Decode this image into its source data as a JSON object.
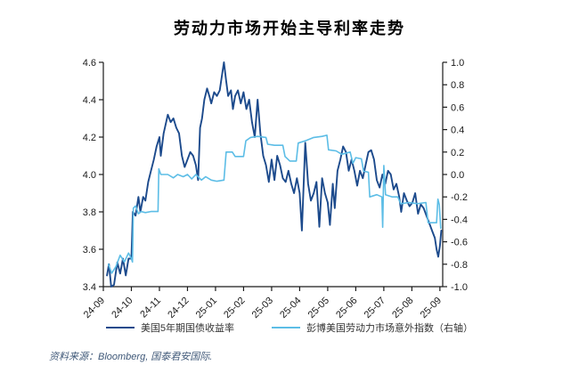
{
  "title": "劳动力市场开始主导利率走势",
  "source": "资料来源：Bloomberg, 国泰君安国际.",
  "colors": {
    "yield_line": "#1c4a8c",
    "surprise_line": "#5cbde6",
    "axis": "#1a1a1a",
    "title_text": "#000000",
    "source_text": "#3f5878"
  },
  "chart_data": {
    "type": "line",
    "title": "劳动力市场开始主导利率走势",
    "grid": false,
    "legend_position": "bottom",
    "x_tick_labels": [
      "24-09",
      "24-10",
      "24-11",
      "24-12",
      "25-01",
      "25-02",
      "25-03",
      "25-04",
      "25-05",
      "25-06",
      "25-07",
      "25-08",
      "25-09"
    ],
    "x_domain_months": [
      0,
      12.1
    ],
    "left_axis": {
      "min": 3.4,
      "max": 4.6,
      "ticks": [
        "4.6",
        "4.4",
        "4.2",
        "4.0",
        "3.8",
        "3.6",
        "3.4"
      ]
    },
    "right_axis": {
      "min": -1.0,
      "max": 1.0,
      "ticks": [
        "1.0",
        "0.8",
        "0.6",
        "0.4",
        "0.2",
        "0.0",
        "-0.2",
        "-0.4",
        "-0.6",
        "-0.8",
        "-1.0"
      ]
    },
    "series": [
      {
        "id": "treasury-yield",
        "name": "美国5年期国债收益率",
        "axis": "left",
        "color": "#1c4a8c",
        "width": 1.9,
        "points": [
          [
            0.13,
            3.46
          ],
          [
            0.2,
            3.52
          ],
          [
            0.28,
            3.4
          ],
          [
            0.38,
            3.41
          ],
          [
            0.5,
            3.53
          ],
          [
            0.6,
            3.47
          ],
          [
            0.7,
            3.55
          ],
          [
            0.8,
            3.46
          ],
          [
            0.9,
            3.55
          ],
          [
            1.0,
            3.55
          ],
          [
            1.05,
            3.8
          ],
          [
            1.15,
            3.78
          ],
          [
            1.25,
            3.88
          ],
          [
            1.32,
            3.8
          ],
          [
            1.42,
            3.88
          ],
          [
            1.5,
            3.86
          ],
          [
            1.6,
            3.96
          ],
          [
            1.7,
            4.02
          ],
          [
            1.8,
            4.08
          ],
          [
            1.9,
            4.15
          ],
          [
            2.0,
            4.2
          ],
          [
            2.05,
            4.1
          ],
          [
            2.15,
            4.22
          ],
          [
            2.3,
            4.32
          ],
          [
            2.4,
            4.28
          ],
          [
            2.5,
            4.3
          ],
          [
            2.6,
            4.25
          ],
          [
            2.7,
            4.22
          ],
          [
            2.8,
            4.1
          ],
          [
            2.9,
            4.04
          ],
          [
            3.0,
            4.08
          ],
          [
            3.1,
            4.12
          ],
          [
            3.2,
            4.1
          ],
          [
            3.3,
            4.05
          ],
          [
            3.38,
            3.97
          ],
          [
            3.45,
            4.25
          ],
          [
            3.52,
            4.3
          ],
          [
            3.6,
            4.4
          ],
          [
            3.7,
            4.46
          ],
          [
            3.78,
            4.42
          ],
          [
            3.85,
            4.38
          ],
          [
            3.95,
            4.44
          ],
          [
            4.05,
            4.42
          ],
          [
            4.15,
            4.45
          ],
          [
            4.25,
            4.55
          ],
          [
            4.3,
            4.6
          ],
          [
            4.38,
            4.5
          ],
          [
            4.45,
            4.42
          ],
          [
            4.55,
            4.45
          ],
          [
            4.62,
            4.35
          ],
          [
            4.7,
            4.42
          ],
          [
            4.8,
            4.45
          ],
          [
            4.9,
            4.38
          ],
          [
            5.0,
            4.44
          ],
          [
            5.1,
            4.35
          ],
          [
            5.2,
            4.4
          ],
          [
            5.3,
            4.28
          ],
          [
            5.4,
            4.2
          ],
          [
            5.5,
            4.4
          ],
          [
            5.6,
            4.22
          ],
          [
            5.7,
            4.1
          ],
          [
            5.8,
            4.05
          ],
          [
            5.9,
            3.96
          ],
          [
            6.0,
            4.08
          ],
          [
            6.1,
            3.97
          ],
          [
            6.2,
            4.1
          ],
          [
            6.3,
            4.05
          ],
          [
            6.4,
            3.98
          ],
          [
            6.5,
            3.96
          ],
          [
            6.6,
            4.02
          ],
          [
            6.7,
            3.95
          ],
          [
            6.8,
            3.9
          ],
          [
            6.9,
            3.98
          ],
          [
            7.0,
            3.9
          ],
          [
            7.08,
            3.7
          ],
          [
            7.2,
            4.17
          ],
          [
            7.3,
            3.95
          ],
          [
            7.4,
            3.86
          ],
          [
            7.5,
            3.9
          ],
          [
            7.6,
            3.96
          ],
          [
            7.7,
            3.72
          ],
          [
            7.8,
            3.98
          ],
          [
            7.9,
            3.9
          ],
          [
            8.0,
            3.85
          ],
          [
            8.08,
            3.73
          ],
          [
            8.18,
            3.95
          ],
          [
            8.25,
            3.82
          ],
          [
            8.35,
            4.02
          ],
          [
            8.45,
            4.08
          ],
          [
            8.55,
            4.15
          ],
          [
            8.65,
            4.12
          ],
          [
            8.75,
            4.02
          ],
          [
            8.85,
            4.08
          ],
          [
            8.95,
            4.02
          ],
          [
            9.05,
            3.94
          ],
          [
            9.15,
            4.02
          ],
          [
            9.25,
            3.98
          ],
          [
            9.35,
            4.05
          ],
          [
            9.45,
            4.12
          ],
          [
            9.55,
            4.13
          ],
          [
            9.65,
            4.08
          ],
          [
            9.75,
            3.97
          ],
          [
            9.85,
            3.93
          ],
          [
            9.95,
            4.0
          ],
          [
            10.05,
            3.95
          ],
          [
            10.15,
            4.02
          ],
          [
            10.25,
            4.0
          ],
          [
            10.35,
            3.92
          ],
          [
            10.45,
            3.95
          ],
          [
            10.55,
            3.88
          ],
          [
            10.62,
            3.8
          ],
          [
            10.72,
            3.9
          ],
          [
            10.82,
            3.86
          ],
          [
            10.92,
            3.83
          ],
          [
            11.02,
            3.85
          ],
          [
            11.12,
            3.9
          ],
          [
            11.22,
            3.79
          ],
          [
            11.32,
            3.84
          ],
          [
            11.42,
            3.82
          ],
          [
            11.52,
            3.78
          ],
          [
            11.62,
            3.74
          ],
          [
            11.72,
            3.7
          ],
          [
            11.82,
            3.66
          ],
          [
            11.88,
            3.6
          ],
          [
            11.94,
            3.56
          ],
          [
            12.0,
            3.62
          ],
          [
            12.05,
            3.7
          ]
        ]
      },
      {
        "id": "labor-surprise",
        "name": "彭博美国劳动力市场意外指数（右轴）",
        "axis": "right",
        "color": "#5cbde6",
        "width": 1.6,
        "points": [
          [
            0.18,
            -0.8
          ],
          [
            0.3,
            -0.88
          ],
          [
            0.45,
            -0.82
          ],
          [
            0.6,
            -0.72
          ],
          [
            0.75,
            -0.78
          ],
          [
            0.9,
            -0.7
          ],
          [
            1.0,
            -0.75
          ],
          [
            1.04,
            -0.78
          ],
          [
            1.07,
            -0.3
          ],
          [
            1.15,
            -0.28
          ],
          [
            1.25,
            -0.35
          ],
          [
            1.35,
            -0.33
          ],
          [
            1.5,
            -0.34
          ],
          [
            1.7,
            -0.33
          ],
          [
            1.95,
            -0.33
          ],
          [
            1.98,
            0.05
          ],
          [
            2.05,
            0.0
          ],
          [
            2.3,
            0.0
          ],
          [
            2.5,
            -0.03
          ],
          [
            2.65,
            0.0
          ],
          [
            2.85,
            -0.02
          ],
          [
            3.0,
            0.0
          ],
          [
            3.15,
            -0.04
          ],
          [
            3.3,
            0.0
          ],
          [
            3.5,
            -0.05
          ],
          [
            3.65,
            -0.02
          ],
          [
            3.85,
            -0.05
          ],
          [
            4.05,
            -0.06
          ],
          [
            4.3,
            -0.05
          ],
          [
            4.38,
            0.2
          ],
          [
            4.6,
            0.2
          ],
          [
            4.7,
            0.16
          ],
          [
            5.0,
            0.16
          ],
          [
            5.08,
            0.3
          ],
          [
            5.25,
            0.33
          ],
          [
            5.5,
            0.34
          ],
          [
            5.8,
            0.33
          ],
          [
            5.86,
            0.27
          ],
          [
            6.1,
            0.26
          ],
          [
            6.4,
            0.26
          ],
          [
            6.48,
            0.16
          ],
          [
            6.65,
            0.12
          ],
          [
            6.88,
            0.12
          ],
          [
            6.95,
            0.28
          ],
          [
            7.2,
            0.3
          ],
          [
            7.5,
            0.33
          ],
          [
            7.8,
            0.34
          ],
          [
            7.97,
            0.35
          ],
          [
            8.03,
            0.22
          ],
          [
            8.3,
            0.21
          ],
          [
            8.5,
            0.18
          ],
          [
            8.8,
            0.2
          ],
          [
            8.9,
            0.1
          ],
          [
            9.0,
            0.15
          ],
          [
            9.2,
            0.14
          ],
          [
            9.28,
            0.03
          ],
          [
            9.45,
            0.02
          ],
          [
            9.5,
            -0.2
          ],
          [
            9.75,
            -0.18
          ],
          [
            9.93,
            -0.2
          ],
          [
            9.96,
            -0.47
          ],
          [
            10.0,
            0.08
          ],
          [
            10.06,
            -0.18
          ],
          [
            10.3,
            -0.2
          ],
          [
            10.5,
            -0.2
          ],
          [
            10.6,
            -0.26
          ],
          [
            10.9,
            -0.25
          ],
          [
            11.2,
            -0.26
          ],
          [
            11.5,
            -0.25
          ],
          [
            11.58,
            -0.43
          ],
          [
            11.88,
            -0.43
          ],
          [
            11.93,
            -0.22
          ],
          [
            11.98,
            -0.27
          ],
          [
            12.03,
            -0.48
          ]
        ]
      }
    ]
  }
}
